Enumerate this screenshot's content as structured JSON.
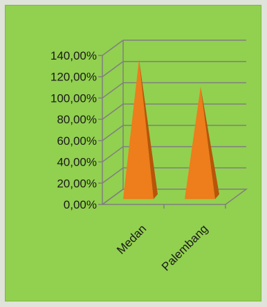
{
  "chart_data": {
    "type": "bar",
    "bar_shape": "3d-pyramid",
    "categories": [
      "Medan",
      "Palembang"
    ],
    "values": [
      1.28,
      1.02
    ],
    "ylim": [
      0,
      1.4
    ],
    "y_ticks": [
      "0,00%",
      "20,00%",
      "40,00%",
      "60,00%",
      "80,00%",
      "100,00%",
      "120,00%",
      "140,00%"
    ],
    "title": "",
    "xlabel": "",
    "ylabel": "",
    "grid": true,
    "legend": "none",
    "colors": {
      "background": "#92d050",
      "bar_front": "#ee7d1b",
      "bar_side": "#b85508",
      "gridline": "#7f7f7f"
    }
  }
}
